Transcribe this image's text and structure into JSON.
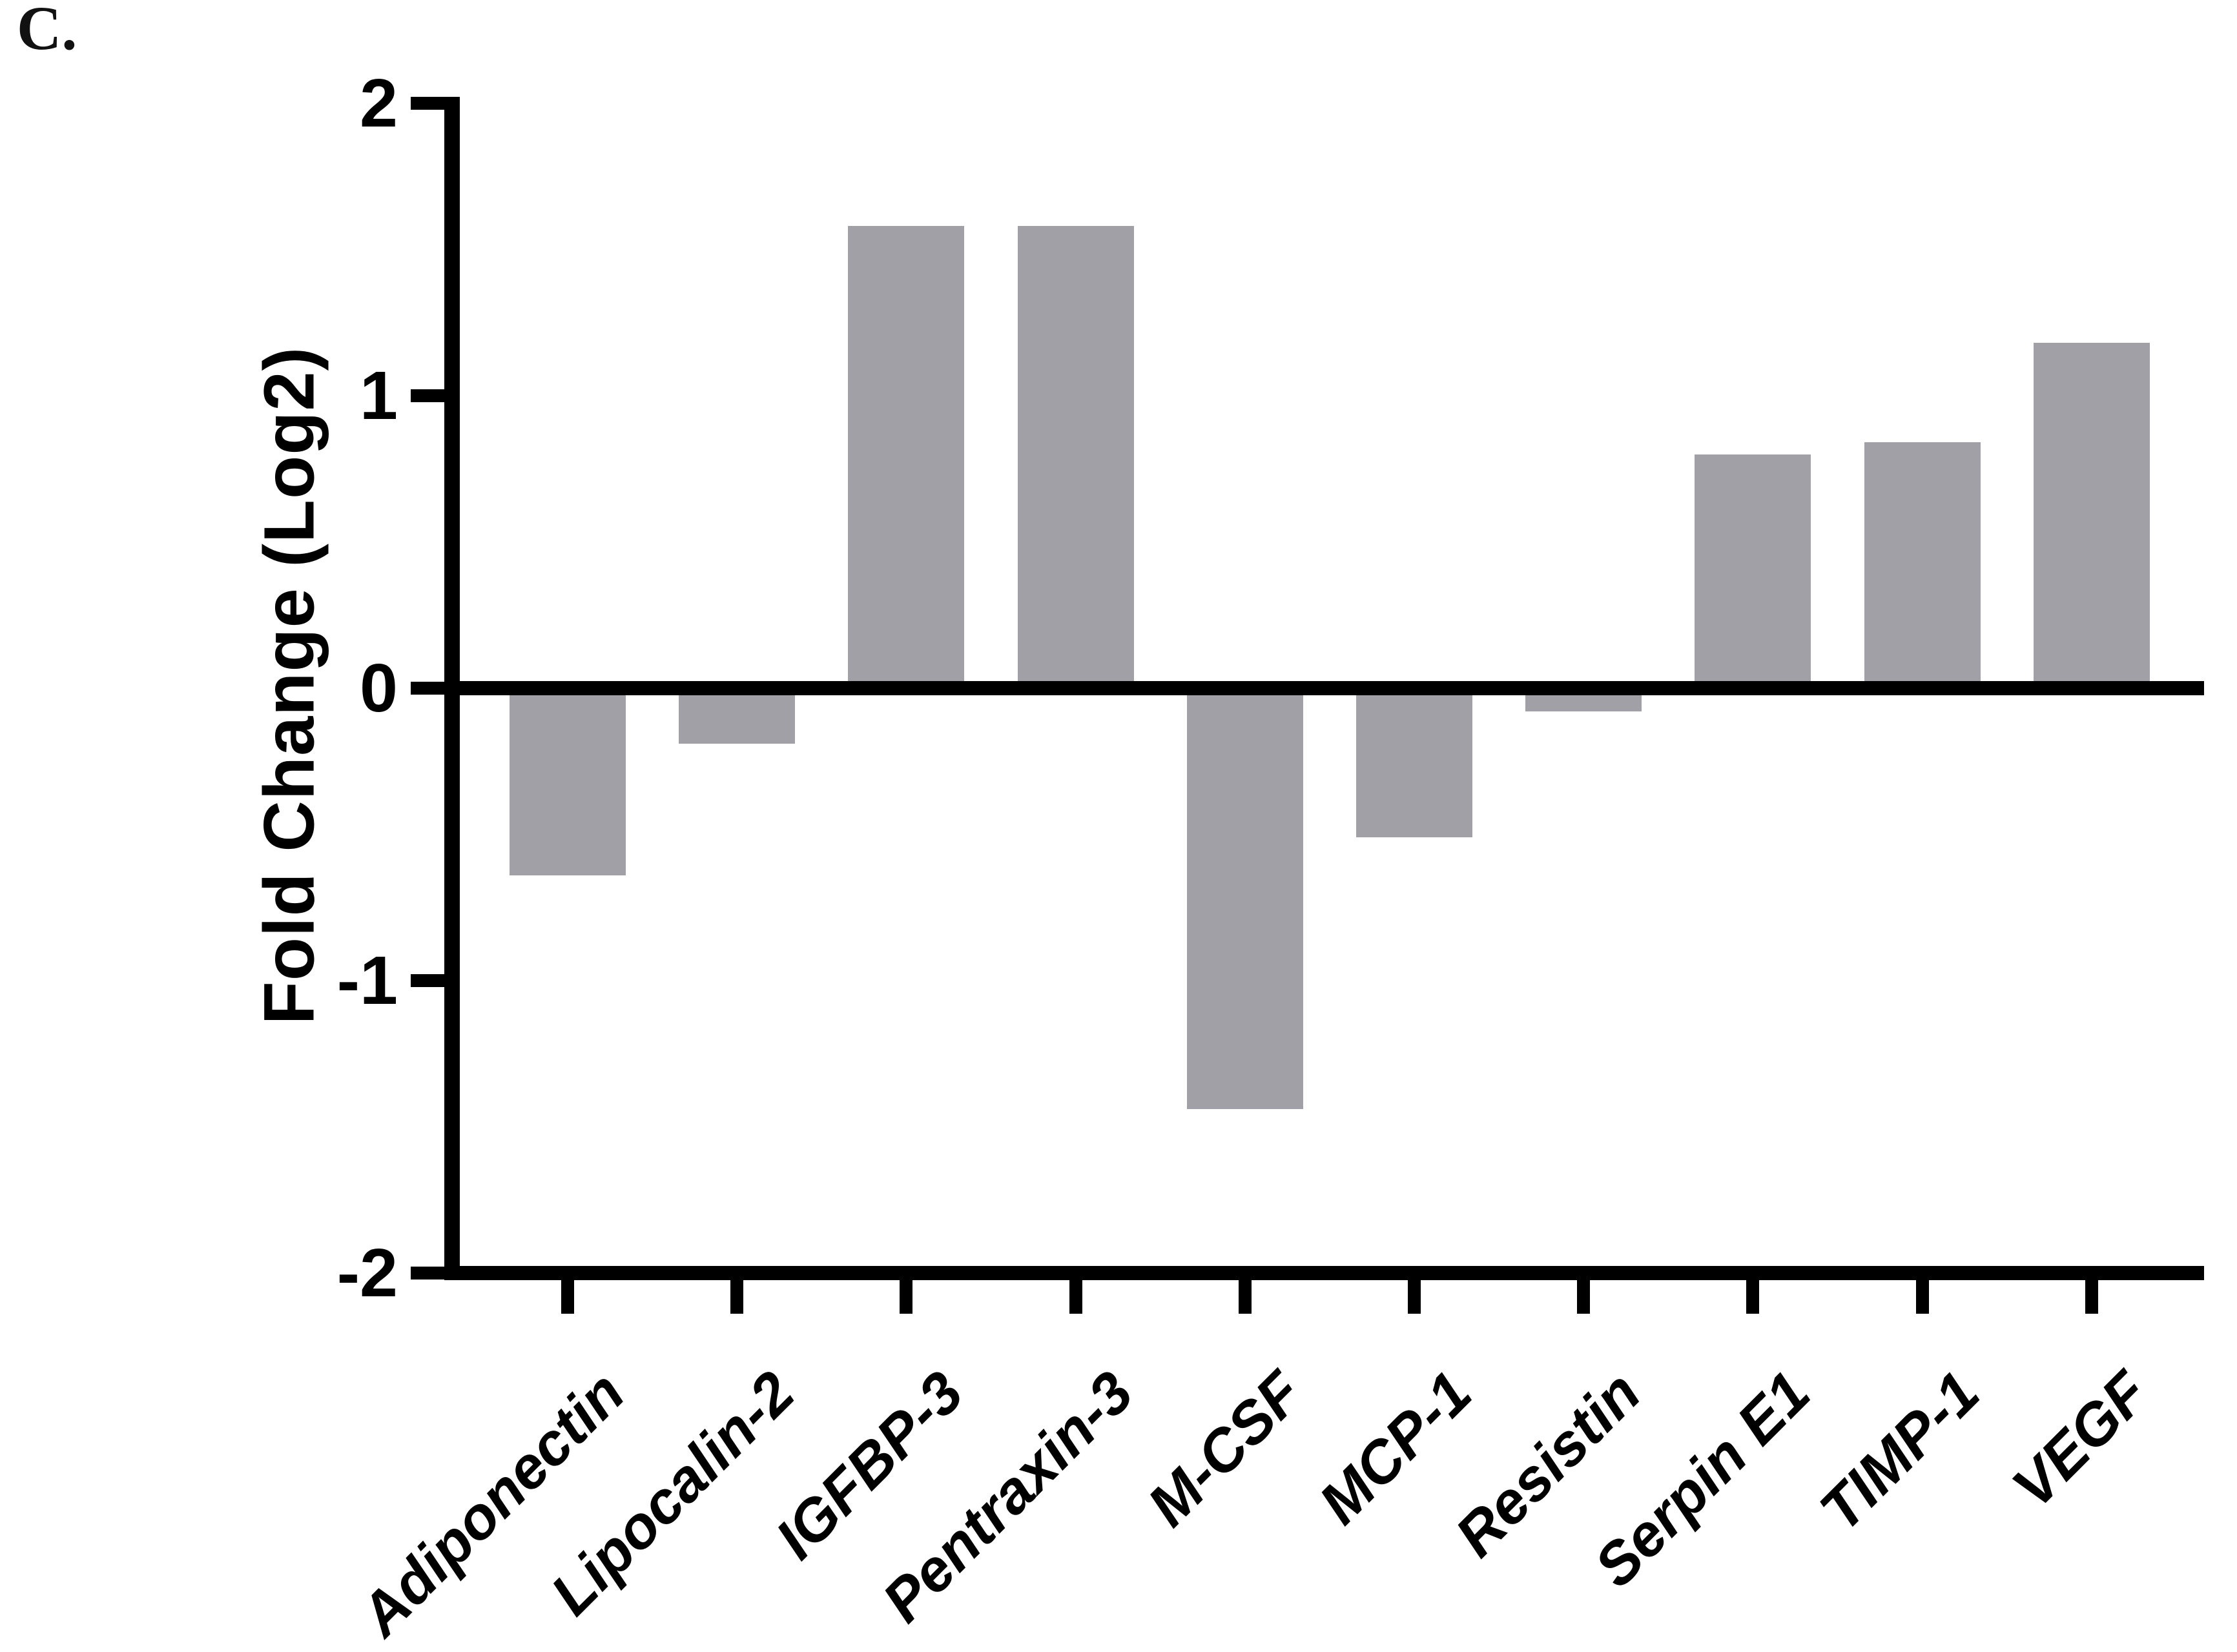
{
  "figure_label": "C.",
  "chart_data": {
    "type": "bar",
    "title": "",
    "xlabel": "",
    "ylabel": "Fold Change (Log2)",
    "ylim": [
      -2,
      2
    ],
    "yticks": [
      2,
      1,
      0,
      -1,
      -2
    ],
    "categories": [
      "Adiponectin",
      "Lipocalin-2",
      "IGFBP-3",
      "Pentraxin-3",
      "M-CSF",
      "MCP-1",
      "Resistin",
      "Serpin E1",
      "TIMP-1",
      "VEGF"
    ],
    "values": [
      -0.64,
      -0.19,
      1.58,
      1.58,
      -1.44,
      -0.51,
      -0.08,
      0.8,
      0.84,
      1.18
    ],
    "bar_color": "#a0a0a6",
    "axis_color": "#000000",
    "grid": false,
    "legend": null,
    "zero_line": true,
    "x_tick_position": "bottom",
    "x_label_rotation_deg": -45
  }
}
